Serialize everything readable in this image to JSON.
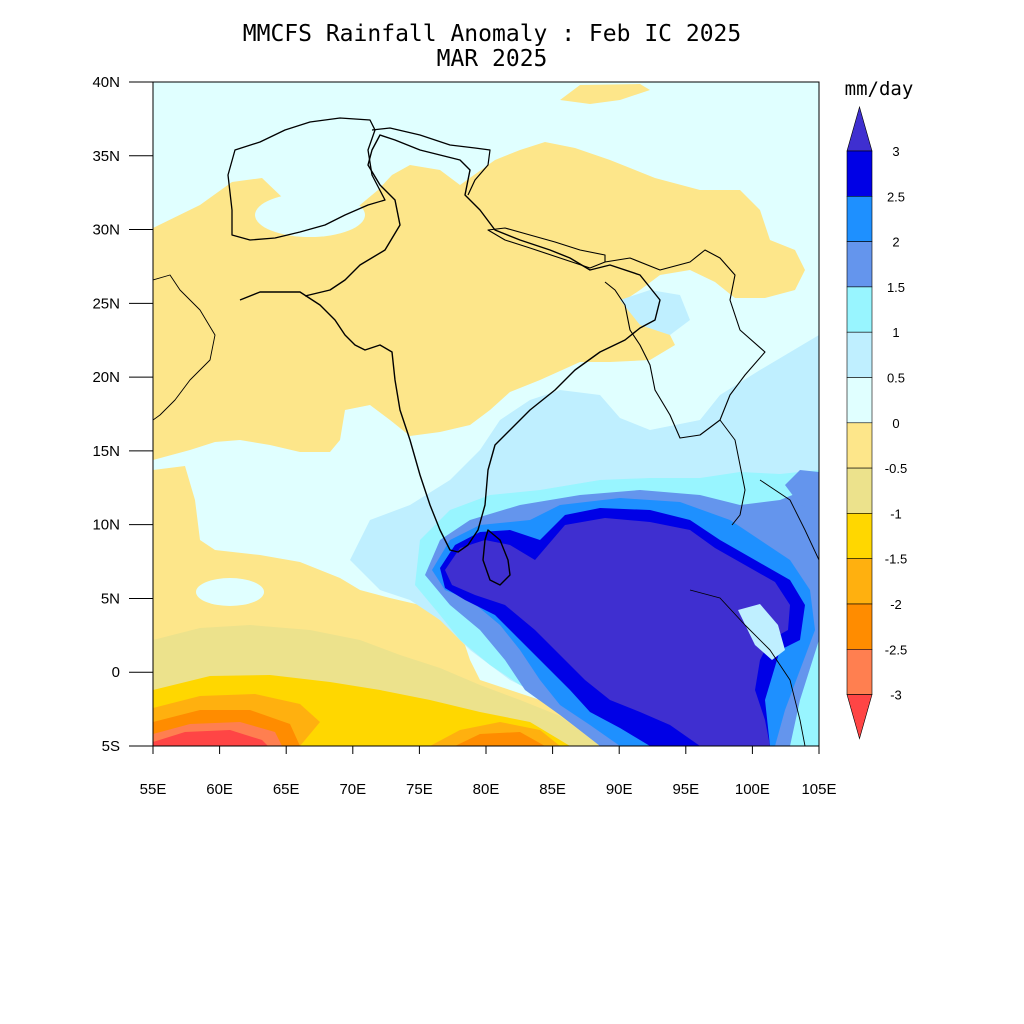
{
  "title": {
    "line1": "MMCFS Rainfall Anomaly : Feb IC 2025",
    "line2": "MAR 2025"
  },
  "map": {
    "lon_range": [
      55,
      105
    ],
    "lat_range": [
      -5,
      40
    ],
    "lon_ticks": [
      {
        "value": 55,
        "label": "55E"
      },
      {
        "value": 60,
        "label": "60E"
      },
      {
        "value": 65,
        "label": "65E"
      },
      {
        "value": 70,
        "label": "70E"
      },
      {
        "value": 75,
        "label": "75E"
      },
      {
        "value": 80,
        "label": "80E"
      },
      {
        "value": 85,
        "label": "85E"
      },
      {
        "value": 90,
        "label": "90E"
      },
      {
        "value": 95,
        "label": "95E"
      },
      {
        "value": 100,
        "label": "100E"
      },
      {
        "value": 105,
        "label": "105E"
      }
    ],
    "lat_ticks": [
      {
        "value": 40,
        "label": "40N"
      },
      {
        "value": 35,
        "label": "35N"
      },
      {
        "value": 30,
        "label": "30N"
      },
      {
        "value": 25,
        "label": "25N"
      },
      {
        "value": 20,
        "label": "20N"
      },
      {
        "value": 15,
        "label": "15N"
      },
      {
        "value": 10,
        "label": "10N"
      },
      {
        "value": 5,
        "label": "5N"
      },
      {
        "value": 0,
        "label": "0"
      },
      {
        "value": -5,
        "label": "5S"
      }
    ]
  },
  "colorbar": {
    "unit": "mm/day",
    "levels": [
      {
        "label": "3"
      },
      {
        "label": "2.5"
      },
      {
        "label": "2"
      },
      {
        "label": "1.5"
      },
      {
        "label": "1"
      },
      {
        "label": "0.5"
      },
      {
        "label": "0"
      },
      {
        "label": "-0.5"
      },
      {
        "label": "-1"
      },
      {
        "label": "-1.5"
      },
      {
        "label": "-2"
      },
      {
        "label": "-2.5"
      },
      {
        "label": "-3"
      }
    ],
    "colors_top_to_bottom": [
      "#3f2fd0",
      "#0000e6",
      "#1e90ff",
      "#6495ed",
      "#98f5ff",
      "#bfefff",
      "#e0ffff",
      "#fde68a",
      "#ece28c",
      "#ffd700",
      "#ffb00f",
      "#ff8c00",
      "#ff7f50",
      "#ff4545"
    ]
  }
}
